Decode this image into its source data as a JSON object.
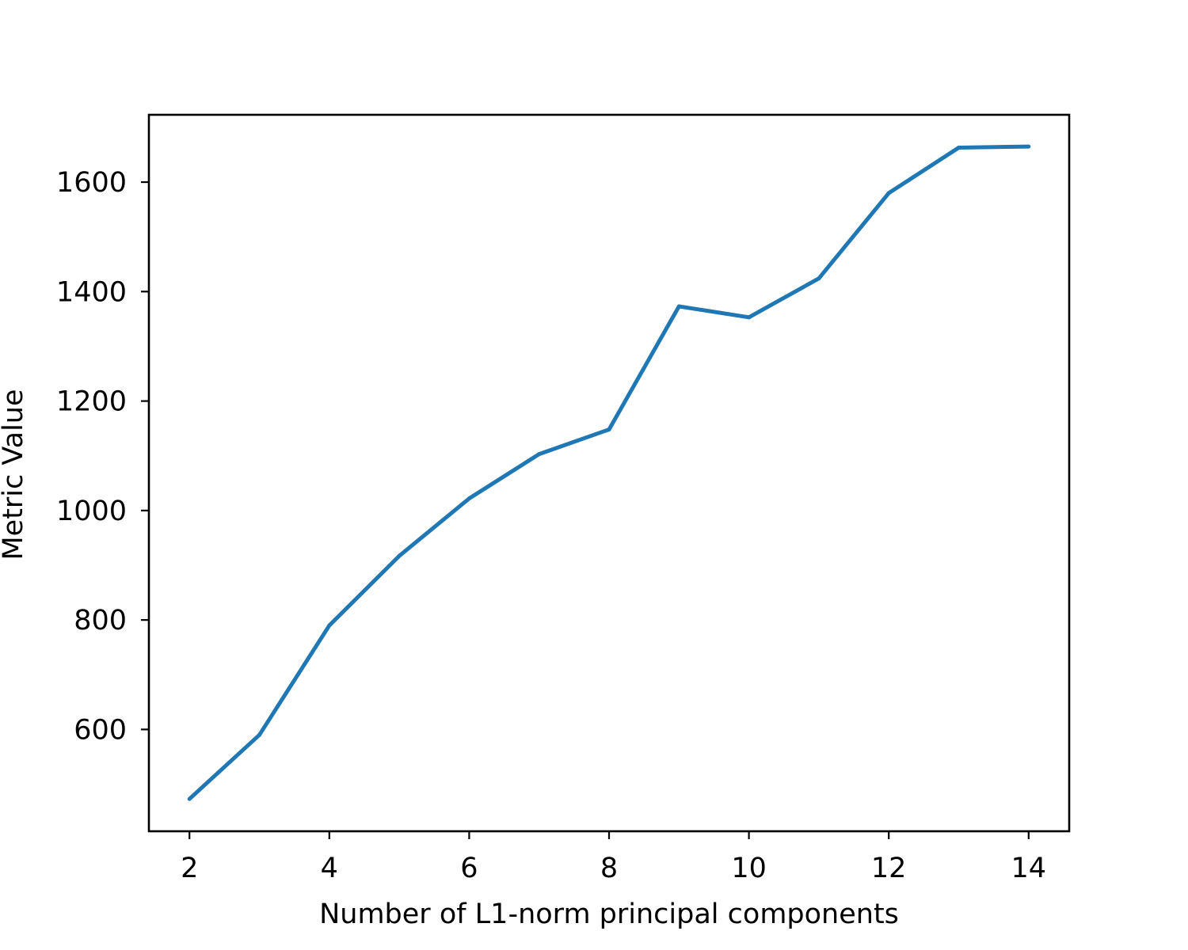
{
  "chart_data": {
    "type": "line",
    "title": "",
    "xlabel": "Number of L1-norm principal components",
    "ylabel": "Metric Value",
    "x": [
      2,
      3,
      4,
      5,
      6,
      7,
      8,
      9,
      10,
      11,
      12,
      13,
      14
    ],
    "series": [
      {
        "name": "",
        "color": "#1f77b4",
        "values": [
          473,
          590,
          790,
          917,
          1022,
          1103,
          1148,
          1373,
          1353,
          1424,
          1580,
          1663,
          1665
        ]
      }
    ],
    "xlim": [
      1.42,
      14.58
    ],
    "ylim": [
      414,
      1723
    ],
    "xticks": [
      2,
      4,
      6,
      8,
      10,
      12,
      14
    ],
    "xtick_labels": [
      "2",
      "4",
      "6",
      "8",
      "10",
      "12",
      "14"
    ],
    "yticks": [
      600,
      800,
      1000,
      1200,
      1400,
      1600
    ],
    "ytick_labels": [
      "600",
      "800",
      "1000",
      "1200",
      "1400",
      "1600"
    ],
    "grid": false,
    "legend": "none"
  }
}
